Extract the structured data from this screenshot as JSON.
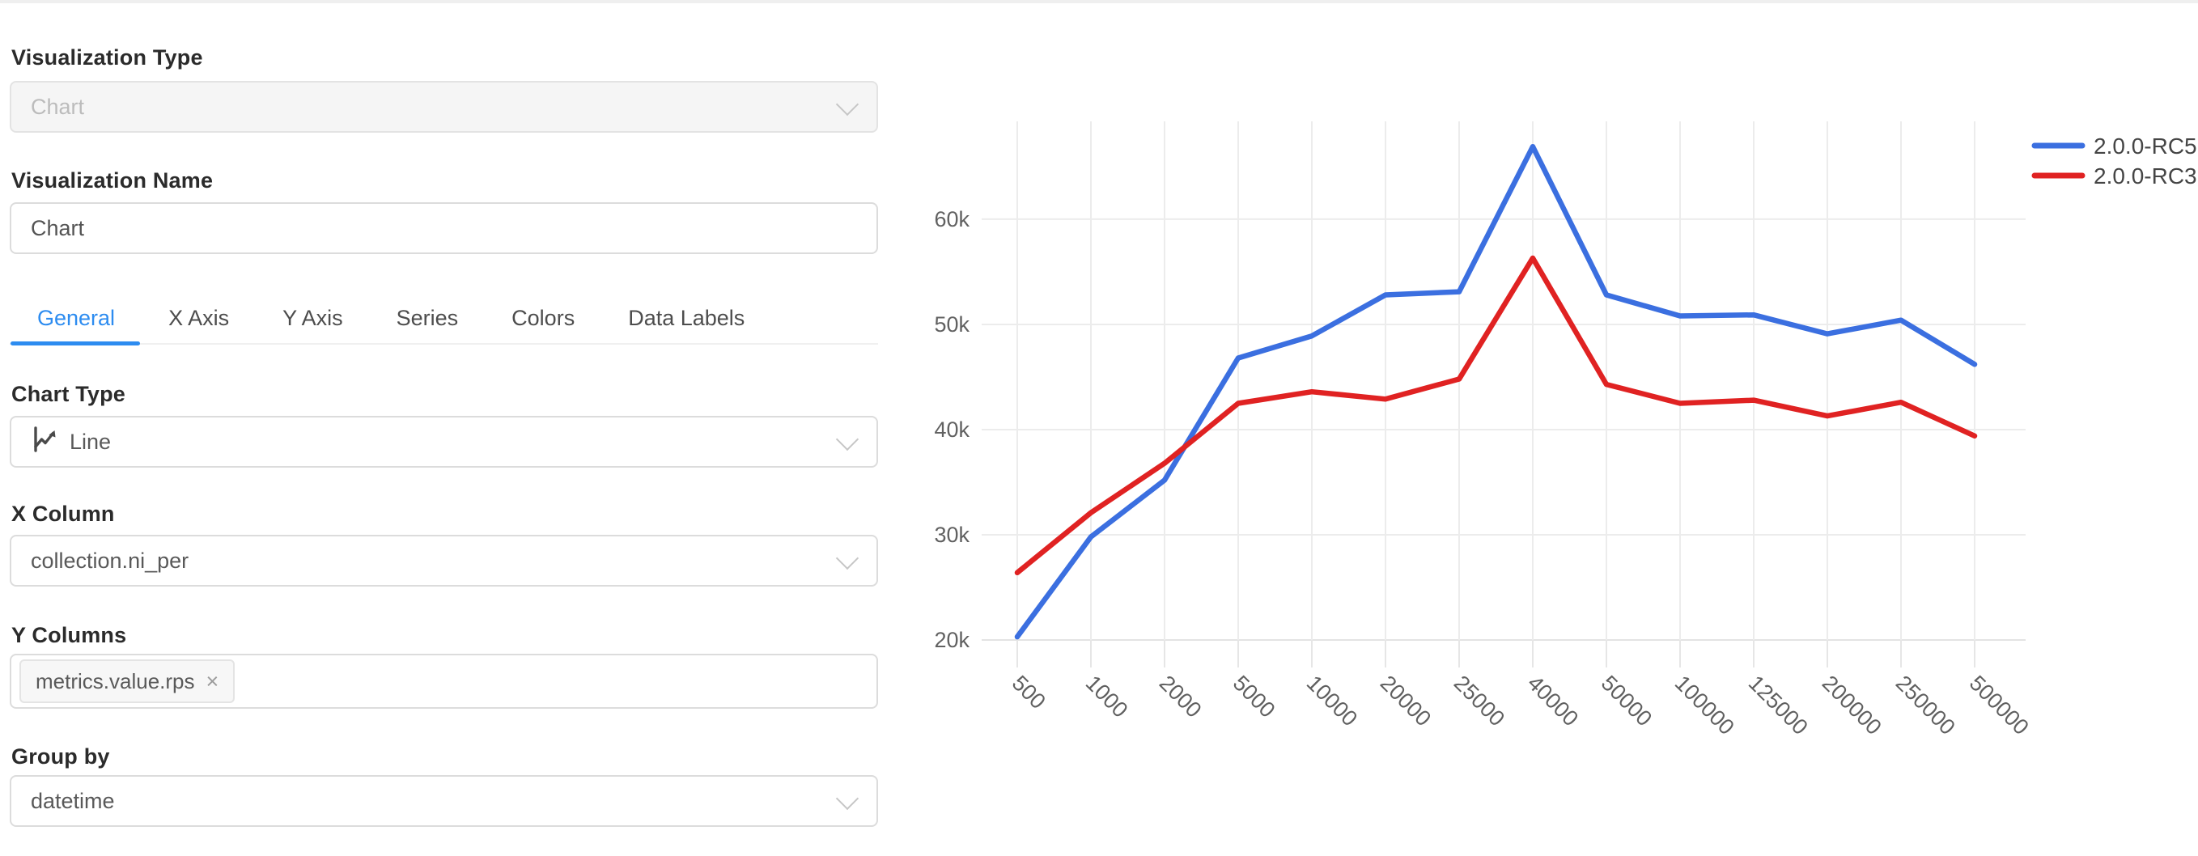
{
  "panel": {
    "visualization_type": {
      "label": "Visualization Type",
      "value": "Chart"
    },
    "visualization_name": {
      "label": "Visualization Name",
      "value": "Chart"
    },
    "tabs": {
      "active": "General",
      "items": [
        "General",
        "X Axis",
        "Y Axis",
        "Series",
        "Colors",
        "Data Labels"
      ]
    },
    "chart_type": {
      "label": "Chart Type",
      "value": "Line",
      "icon": "line-chart-icon"
    },
    "x_column": {
      "label": "X Column",
      "value": "collection.ni_per"
    },
    "y_columns": {
      "label": "Y Columns",
      "tags": [
        {
          "text": "metrics.value.rps",
          "remove": "×"
        }
      ]
    },
    "group_by": {
      "label": "Group by",
      "value": "datetime"
    }
  },
  "chart_data": {
    "type": "line",
    "categories": [
      "500",
      "1000",
      "2000",
      "5000",
      "10000",
      "20000",
      "25000",
      "40000",
      "50000",
      "100000",
      "125000",
      "200000",
      "250000",
      "500000"
    ],
    "series": [
      {
        "name": "2.0.0-RC5",
        "color": "#3B6FE0",
        "values": [
          20300,
          29800,
          35200,
          46800,
          48900,
          52800,
          53100,
          66900,
          52800,
          50800,
          50900,
          49100,
          50400,
          46200
        ]
      },
      {
        "name": "2.0.0-RC3",
        "color": "#E02222",
        "values": [
          26400,
          32100,
          36800,
          42500,
          43600,
          42900,
          44800,
          56300,
          44300,
          42500,
          42800,
          41300,
          42600,
          39400
        ]
      }
    ],
    "yticks": [
      {
        "v": 20000,
        "label": "20k"
      },
      {
        "v": 30000,
        "label": "30k"
      },
      {
        "v": 40000,
        "label": "40k"
      },
      {
        "v": 50000,
        "label": "50k"
      },
      {
        "v": 60000,
        "label": "60k"
      }
    ],
    "ylim": [
      20000,
      69300
    ],
    "grid": true,
    "legend_position": "top-right",
    "title": "",
    "xlabel": "",
    "ylabel": ""
  },
  "colors": {
    "accent_blue": "#2d8cf0",
    "series_blue": "#3B6FE0",
    "series_red": "#E02222",
    "gridline": "#ececec"
  }
}
